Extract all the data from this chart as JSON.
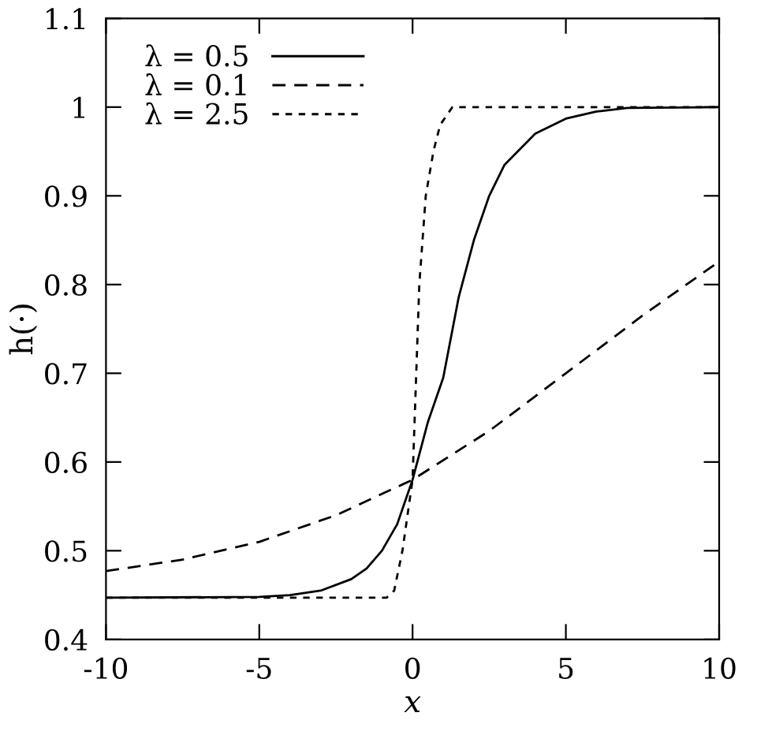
{
  "chart_data": {
    "type": "line",
    "xlabel": "x",
    "ylabel": "h(·)",
    "xlim": [
      -10,
      10
    ],
    "xticks": [
      -10,
      -5,
      0,
      5,
      10
    ],
    "ylim": [
      0.4,
      1.1
    ],
    "yticks": [
      0.4,
      0.5,
      0.6,
      0.7,
      0.8,
      0.9,
      1,
      1.1
    ],
    "grid": false,
    "legend": "top left",
    "marker": "none",
    "series": [
      {
        "name": "λ = 0.5",
        "color": "#000000",
        "line_style": "solid",
        "x": [
          -10,
          -5,
          -4,
          -3,
          -2,
          -1.5,
          -1,
          -0.5,
          0,
          0.5,
          1,
          1.5,
          2,
          2.5,
          3,
          4,
          5,
          6,
          7,
          10
        ],
        "values": [
          0.447,
          0.448,
          0.45,
          0.455,
          0.468,
          0.48,
          0.5,
          0.53,
          0.58,
          0.645,
          0.695,
          0.785,
          0.85,
          0.9,
          0.935,
          0.97,
          0.987,
          0.995,
          0.999,
          1.0
        ]
      },
      {
        "name": "λ = 0.1",
        "color": "#000000",
        "line_style": "dashed",
        "x": [
          -10,
          -7.5,
          -5,
          -2.5,
          0,
          2.5,
          5,
          7.5,
          10
        ],
        "values": [
          0.477,
          0.49,
          0.51,
          0.54,
          0.58,
          0.635,
          0.7,
          0.765,
          0.826
        ]
      },
      {
        "name": "λ = 2.5",
        "color": "#000000",
        "line_style": "dotted",
        "x": [
          -10,
          -0.85,
          -0.6,
          -0.33,
          0,
          0.22,
          0.43,
          0.68,
          0.9,
          1.3,
          10
        ],
        "values": [
          0.447,
          0.447,
          0.455,
          0.5,
          0.58,
          0.8,
          0.9,
          0.95,
          0.98,
          1.0,
          1.0
        ]
      }
    ]
  }
}
